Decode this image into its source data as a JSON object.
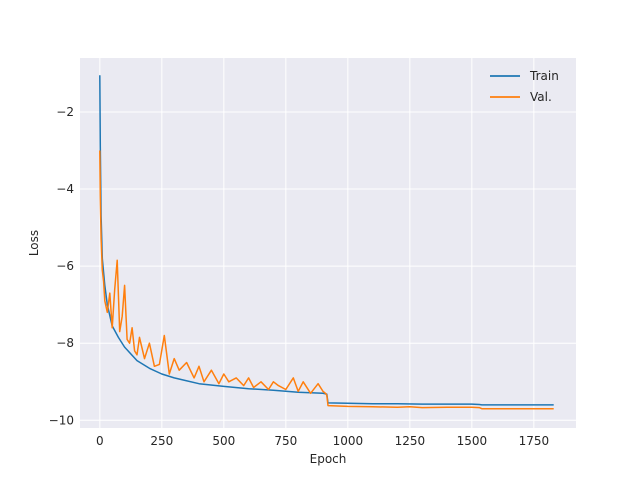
{
  "chart_data": {
    "type": "line",
    "title": "",
    "xlabel": "Epoch",
    "ylabel": "Loss",
    "xlim": [
      -80,
      1920
    ],
    "ylim": [
      -10.2,
      -0.6
    ],
    "xticks": [
      0,
      250,
      500,
      750,
      1000,
      1250,
      1500,
      1750
    ],
    "yticks": [
      -10,
      -8,
      -6,
      -4,
      -2
    ],
    "xtick_labels": [
      "0",
      "250",
      "500",
      "750",
      "1000",
      "1250",
      "1500",
      "1750"
    ],
    "ytick_labels": [
      "−10",
      "−8",
      "−6",
      "−4",
      "−2"
    ],
    "grid": true,
    "legend": {
      "placement": "top-right"
    },
    "series": [
      {
        "name": "Train",
        "color": "#1f77b4",
        "x": [
          0,
          2,
          5,
          10,
          20,
          30,
          50,
          75,
          100,
          150,
          200,
          250,
          300,
          400,
          500,
          600,
          700,
          800,
          900,
          915,
          920,
          1000,
          1100,
          1200,
          1300,
          1400,
          1500,
          1530,
          1540,
          1600,
          1700,
          1830
        ],
        "y": [
          -1.05,
          -2.9,
          -4.7,
          -5.8,
          -6.5,
          -7.0,
          -7.55,
          -7.85,
          -8.1,
          -8.45,
          -8.65,
          -8.8,
          -8.9,
          -9.05,
          -9.12,
          -9.18,
          -9.22,
          -9.27,
          -9.3,
          -9.32,
          -9.55,
          -9.56,
          -9.57,
          -9.57,
          -9.58,
          -9.58,
          -9.58,
          -9.59,
          -9.6,
          -9.6,
          -9.6,
          -9.6
        ]
      },
      {
        "name": "Val.",
        "color": "#ff7f0e",
        "x": [
          0,
          2,
          5,
          10,
          15,
          20,
          30,
          40,
          50,
          60,
          70,
          80,
          90,
          100,
          110,
          120,
          130,
          140,
          150,
          160,
          180,
          200,
          220,
          240,
          260,
          280,
          300,
          320,
          350,
          380,
          400,
          420,
          450,
          480,
          500,
          520,
          550,
          580,
          600,
          620,
          650,
          680,
          700,
          720,
          750,
          780,
          800,
          820,
          850,
          880,
          900,
          910,
          915,
          920,
          1000,
          1100,
          1200,
          1250,
          1300,
          1400,
          1500,
          1530,
          1540,
          1600,
          1700,
          1830
        ],
        "y": [
          -3.0,
          -4.2,
          -5.3,
          -6.1,
          -6.4,
          -6.9,
          -7.2,
          -6.7,
          -7.6,
          -6.6,
          -5.85,
          -7.7,
          -7.3,
          -6.5,
          -7.9,
          -8.0,
          -7.6,
          -8.2,
          -8.3,
          -7.85,
          -8.4,
          -8.0,
          -8.6,
          -8.55,
          -7.8,
          -8.8,
          -8.4,
          -8.7,
          -8.5,
          -8.9,
          -8.6,
          -9.0,
          -8.7,
          -9.05,
          -8.8,
          -9.0,
          -8.9,
          -9.1,
          -8.9,
          -9.15,
          -9.0,
          -9.2,
          -9.0,
          -9.1,
          -9.2,
          -8.9,
          -9.25,
          -9.0,
          -9.3,
          -9.05,
          -9.25,
          -9.3,
          -9.35,
          -9.62,
          -9.64,
          -9.65,
          -9.66,
          -9.65,
          -9.67,
          -9.66,
          -9.66,
          -9.67,
          -9.7,
          -9.7,
          -9.7,
          -9.7
        ]
      }
    ]
  }
}
